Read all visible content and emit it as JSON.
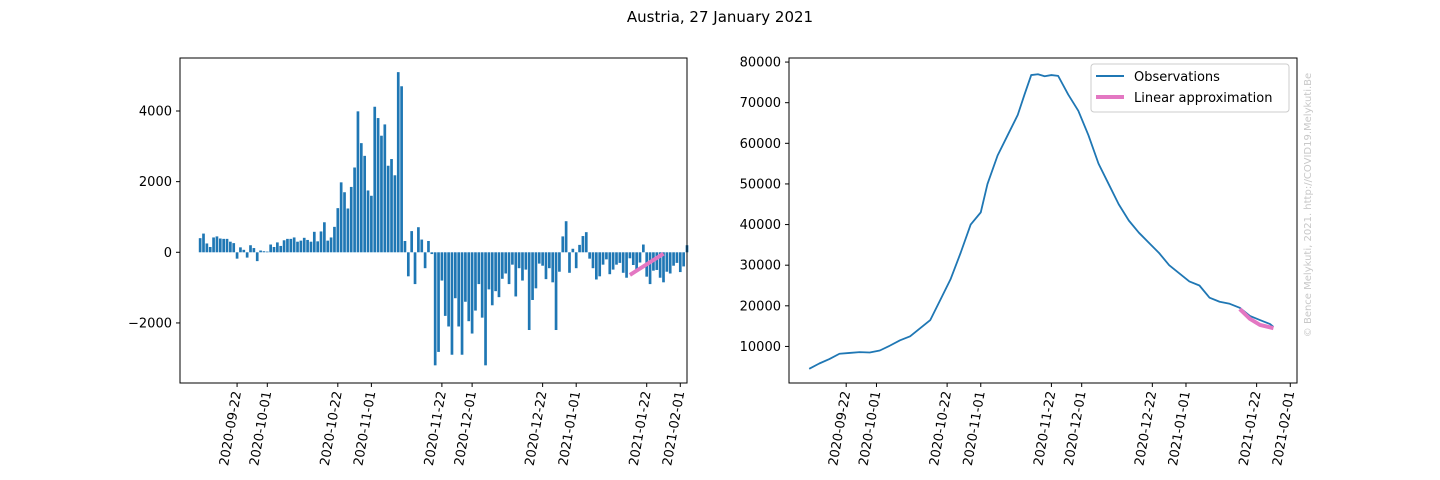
{
  "figure": {
    "title": "Austria, 27 January 2021",
    "watermark": "© Bence Melykuti, 2021. http://COVID19.Melykuti.Be"
  },
  "colors": {
    "bar": "#1f77b4",
    "observations": "#1f77b4",
    "linear": "#e377c2"
  },
  "chart_data": [
    {
      "type": "bar",
      "xlim": [
        "2020-09-05",
        "2021-02-03"
      ],
      "ylim": [
        -3700,
        5500
      ],
      "yticks": [
        -2000,
        0,
        2000,
        4000
      ],
      "ytick_labels": [
        "−2000",
        "0",
        "2000",
        "4000"
      ],
      "xtick_labels": [
        "2020-09-22",
        "2020-10-01",
        "2020-10-22",
        "2020-11-01",
        "2020-11-22",
        "2020-12-01",
        "2020-12-22",
        "2021-01-01",
        "2021-01-22",
        "2021-02-01"
      ],
      "x_start": "2020-09-11",
      "values": [
        400,
        530,
        250,
        150,
        420,
        450,
        390,
        380,
        380,
        300,
        260,
        -180,
        140,
        70,
        -150,
        200,
        120,
        -250,
        50,
        30,
        20,
        220,
        150,
        280,
        180,
        340,
        380,
        380,
        420,
        300,
        330,
        410,
        350,
        300,
        580,
        310,
        590,
        850,
        330,
        420,
        720,
        1250,
        1980,
        1700,
        1240,
        1850,
        2400,
        3990,
        3090,
        2730,
        1750,
        1600,
        4120,
        3800,
        3300,
        3620,
        2450,
        2640,
        2180,
        5100,
        4700,
        320,
        -680,
        600,
        -900,
        710,
        360,
        -450,
        320,
        -50,
        -3200,
        -2820,
        -800,
        -1800,
        -2100,
        -2900,
        -1300,
        -2100,
        -2900,
        -1400,
        -1950,
        -2300,
        -1650,
        -900,
        -1850,
        -3200,
        -1050,
        -1500,
        -1100,
        -1270,
        -750,
        -600,
        -900,
        -350,
        -1250,
        -450,
        -800,
        -490,
        -2200,
        -1350,
        -1020,
        -320,
        -380,
        -760,
        -450,
        -850,
        -2200,
        -550,
        450,
        880,
        -580,
        100,
        -450,
        210,
        460,
        570,
        -180,
        -450,
        -770,
        -680,
        -350,
        -200,
        -620,
        -490,
        -350,
        -300,
        -580,
        -720,
        -170,
        -360,
        -550,
        -290,
        220,
        -690,
        -900,
        -520,
        -500,
        -720,
        -850,
        -550,
        -600,
        -380,
        -300,
        -560,
        -400,
        200
      ],
      "series": [
        {
          "kind": "linear",
          "x": [
            "2021-01-17",
            "2021-01-27"
          ],
          "y": [
            -640,
            -40
          ]
        }
      ]
    },
    {
      "type": "line",
      "xlim": [
        "2020-09-05",
        "2021-02-03"
      ],
      "ylim": [
        1000,
        81000
      ],
      "yticks": [
        10000,
        20000,
        30000,
        40000,
        50000,
        60000,
        70000,
        80000
      ],
      "ytick_labels": [
        "10000",
        "20000",
        "30000",
        "40000",
        "50000",
        "60000",
        "70000",
        "80000"
      ],
      "xtick_labels": [
        "2020-09-22",
        "2020-10-01",
        "2020-10-22",
        "2020-11-01",
        "2020-11-22",
        "2020-12-01",
        "2020-12-22",
        "2021-01-01",
        "2021-01-22",
        "2021-02-01"
      ],
      "legend_position": "top-right",
      "series": [
        {
          "name": "Observations",
          "x": [
            "2020-09-11",
            "2020-09-14",
            "2020-09-17",
            "2020-09-20",
            "2020-09-23",
            "2020-09-26",
            "2020-09-29",
            "2020-10-02",
            "2020-10-05",
            "2020-10-08",
            "2020-10-11",
            "2020-10-14",
            "2020-10-17",
            "2020-10-20",
            "2020-10-23",
            "2020-10-26",
            "2020-10-29",
            "2020-11-01",
            "2020-11-03",
            "2020-11-06",
            "2020-11-09",
            "2020-11-12",
            "2020-11-14",
            "2020-11-16",
            "2020-11-18",
            "2020-11-20",
            "2020-11-22",
            "2020-11-24",
            "2020-11-27",
            "2020-11-30",
            "2020-12-03",
            "2020-12-06",
            "2020-12-09",
            "2020-12-12",
            "2020-12-15",
            "2020-12-18",
            "2020-12-21",
            "2020-12-24",
            "2020-12-27",
            "2020-12-30",
            "2021-01-02",
            "2021-01-05",
            "2021-01-08",
            "2021-01-11",
            "2021-01-14",
            "2021-01-17",
            "2021-01-20",
            "2021-01-23",
            "2021-01-26",
            "2021-01-27"
          ],
          "y": [
            4500,
            5800,
            6900,
            8200,
            8400,
            8600,
            8500,
            9000,
            10200,
            11500,
            12500,
            14500,
            16500,
            21500,
            26500,
            33000,
            40000,
            43000,
            50000,
            57000,
            62000,
            67000,
            72000,
            76800,
            77000,
            76500,
            76800,
            76600,
            72000,
            68000,
            62000,
            55000,
            50000,
            45000,
            41000,
            38000,
            35500,
            33000,
            30000,
            28000,
            26000,
            25000,
            22000,
            21000,
            20500,
            19500,
            17500,
            16500,
            15500,
            14800
          ]
        },
        {
          "name": "Linear approximation",
          "kind": "linear",
          "x": [
            "2021-01-17",
            "2021-01-20",
            "2021-01-23",
            "2021-01-27"
          ],
          "y": [
            19200,
            16800,
            15300,
            14500
          ]
        }
      ]
    }
  ]
}
